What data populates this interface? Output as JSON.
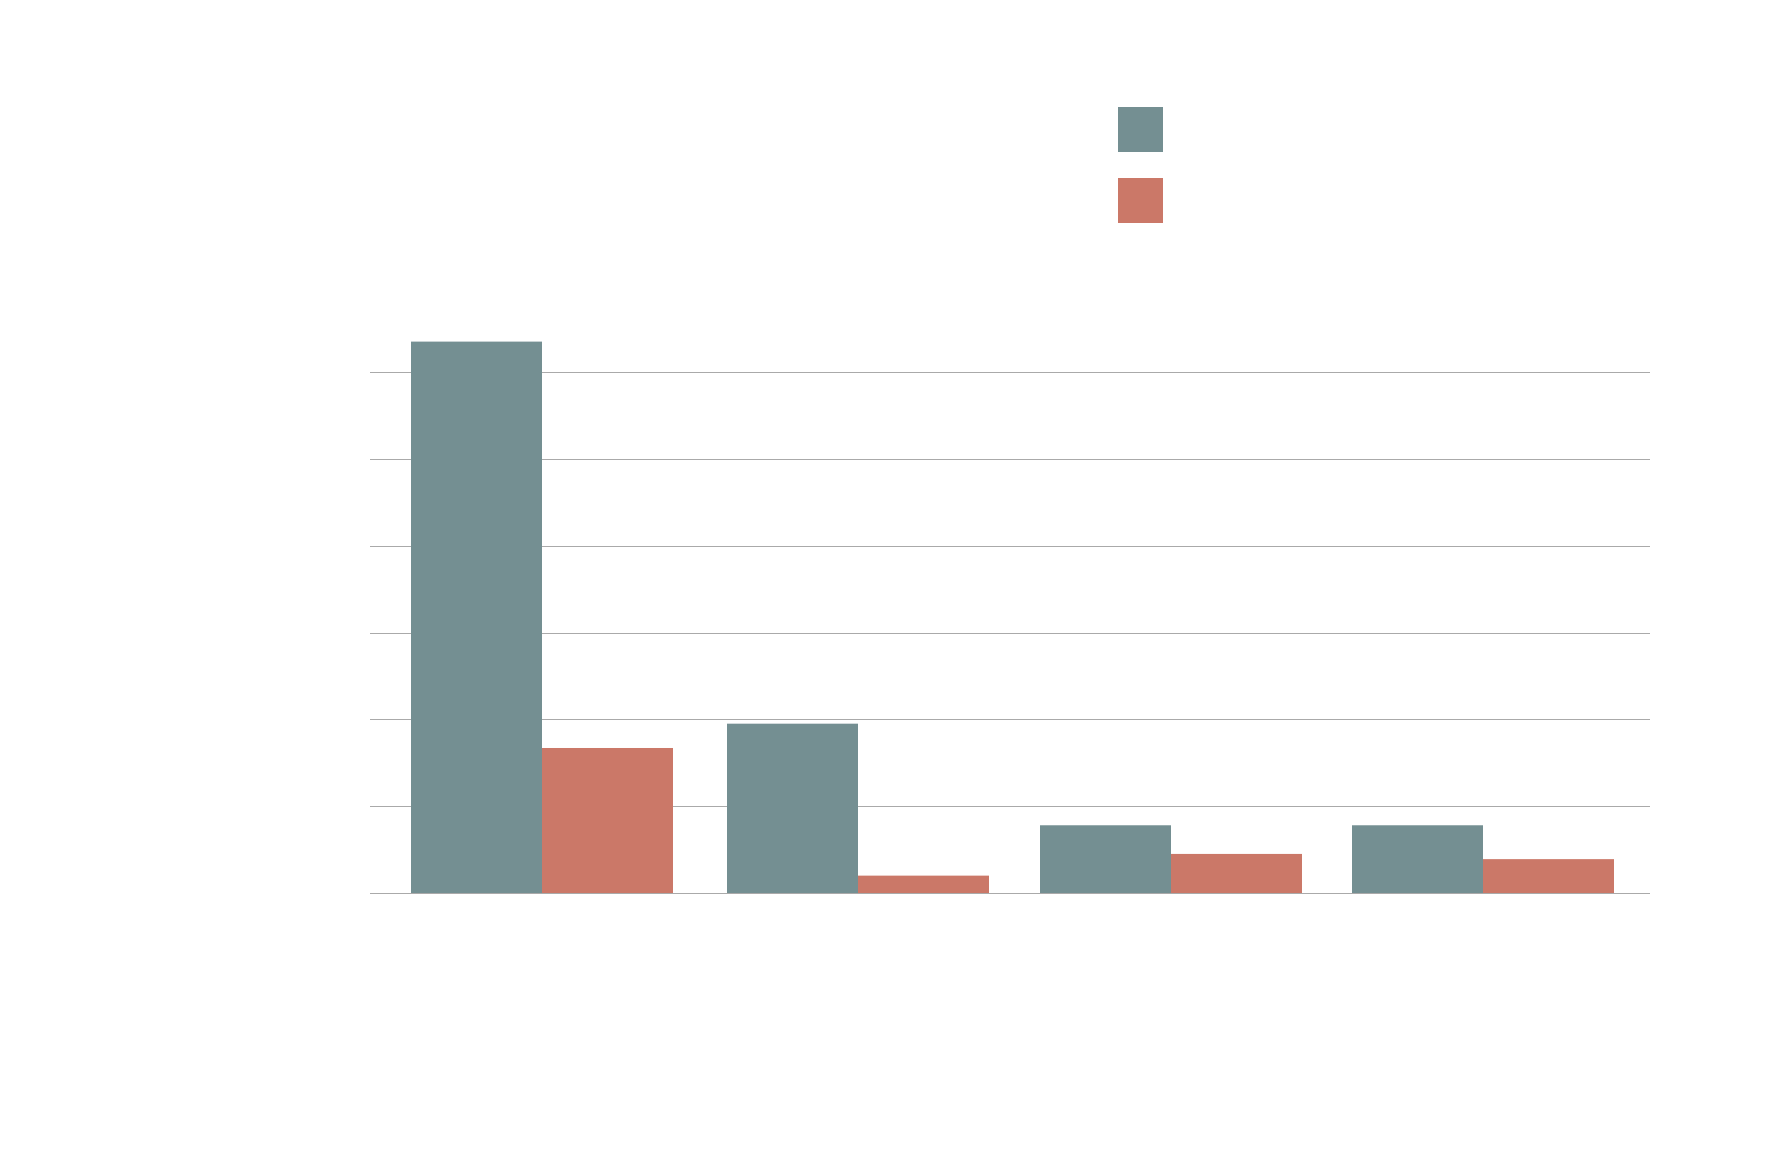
{
  "chart_data": {
    "type": "bar",
    "categories": [
      "",
      "",
      "",
      ""
    ],
    "series": [
      {
        "values": [
          6.35,
          1.95,
          0.78,
          0.78
        ],
        "color": "#748f92"
      },
      {
        "values": [
          1.67,
          0.2,
          0.45,
          0.39
        ],
        "color": "#cb7868"
      }
    ],
    "ylim": [
      0,
      6.0
    ],
    "yticks": [
      0,
      1,
      2,
      3,
      4,
      5,
      6
    ],
    "grid": true,
    "grid_color": "#aaaaaa",
    "legend_position": "top-right",
    "title": "",
    "xlabel": "",
    "ylabel": ""
  }
}
